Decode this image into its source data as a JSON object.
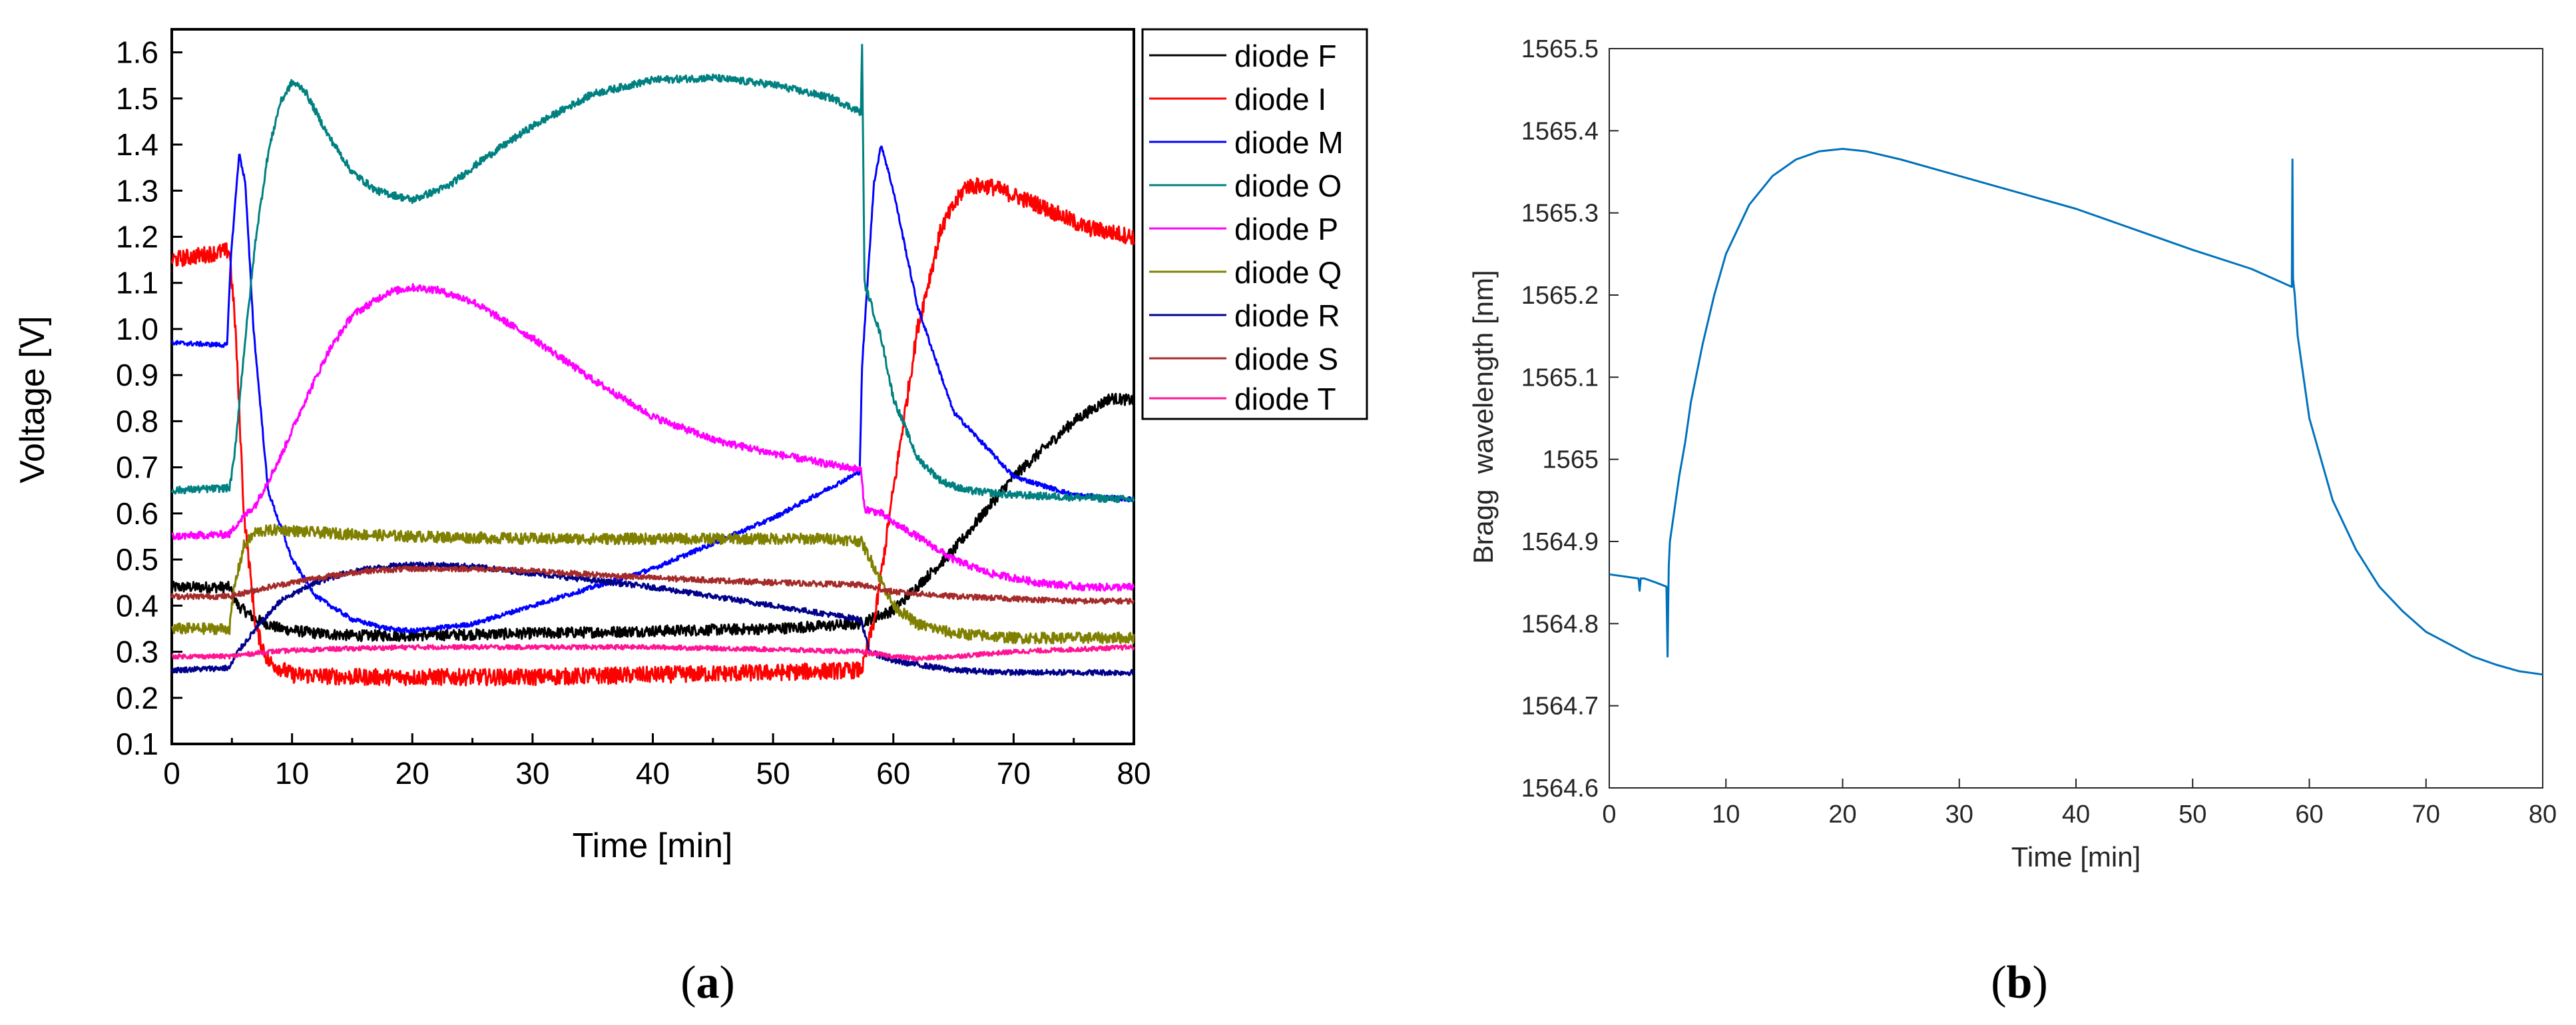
{
  "chart_data": [
    {
      "id": "a",
      "type": "line",
      "title": "",
      "panel_label": "a",
      "xlabel": "Time [min]",
      "ylabel": "Voltage [V]",
      "xlim": [
        0,
        80
      ],
      "ylim": [
        0.1,
        1.65
      ],
      "x_ticks": [
        0,
        10,
        20,
        30,
        40,
        50,
        60,
        70,
        80
      ],
      "x_tick_labels": [
        "0",
        "10",
        "20",
        "30",
        "40",
        "50",
        "60",
        "70",
        "80"
      ],
      "y_ticks": [
        0.1,
        0.2,
        0.3,
        0.4,
        0.5,
        0.6,
        0.7,
        0.8,
        0.9,
        1.0,
        1.1,
        1.2,
        1.3,
        1.4,
        1.5,
        1.6
      ],
      "y_tick_labels": [
        "0.1",
        "0.2",
        "0.3",
        "0.4",
        "0.5",
        "0.6",
        "0.7",
        "0.8",
        "0.9",
        "1.0",
        "1.1",
        "1.2",
        "1.3",
        "1.4",
        "1.5",
        "1.6"
      ],
      "grid": false,
      "legend_position": "outside-right-top",
      "series": [
        {
          "name": "diode F",
          "color": "#000000",
          "noise": 0.012,
          "x": [
            0,
            4.8,
            5.5,
            7,
            9,
            12,
            15,
            20,
            30,
            40,
            50,
            57,
            60,
            65,
            70,
            75,
            78,
            80
          ],
          "y": [
            0.44,
            0.44,
            0.4,
            0.37,
            0.35,
            0.34,
            0.335,
            0.335,
            0.34,
            0.345,
            0.35,
            0.36,
            0.39,
            0.52,
            0.68,
            0.8,
            0.85,
            0.845
          ]
        },
        {
          "name": "diode I",
          "color": "#ff0000",
          "noise": 0.018,
          "x": [
            0,
            4.8,
            5.3,
            6,
            7,
            8,
            10,
            15,
            20,
            30,
            40,
            50,
            57.2,
            57.5,
            58.5,
            60,
            62,
            64,
            66,
            68,
            72,
            76,
            80
          ],
          "y": [
            1.15,
            1.17,
            1.0,
            0.6,
            0.35,
            0.28,
            0.25,
            0.245,
            0.245,
            0.245,
            0.25,
            0.255,
            0.26,
            0.27,
            0.38,
            0.65,
            1.0,
            1.22,
            1.31,
            1.31,
            1.27,
            1.22,
            1.2
          ]
        },
        {
          "name": "diode M",
          "color": "#0000ff",
          "noise": 0.005,
          "x": [
            0,
            4.6,
            4.9,
            5.6,
            6.1,
            6.8,
            8,
            10,
            12,
            15,
            18,
            20,
            25,
            30,
            40,
            50,
            57.2,
            57.4,
            58.4,
            59,
            60,
            62,
            65,
            70,
            75,
            80
          ],
          "y": [
            0.97,
            0.965,
            1.15,
            1.38,
            1.32,
            1.0,
            0.65,
            0.5,
            0.42,
            0.37,
            0.35,
            0.345,
            0.36,
            0.4,
            0.48,
            0.59,
            0.69,
            0.92,
            1.32,
            1.4,
            1.3,
            1.05,
            0.82,
            0.68,
            0.64,
            0.63
          ]
        },
        {
          "name": "diode O",
          "color": "#008080",
          "noise": 0.008,
          "x": [
            0,
            4.8,
            5.2,
            6,
            7,
            8,
            9,
            10,
            11,
            13,
            15,
            17,
            20,
            23,
            26,
            30,
            35,
            40,
            45,
            50,
            55,
            57.3,
            57.4,
            57.6,
            58.2,
            59,
            60,
            62,
            64,
            66,
            70,
            75,
            80
          ],
          "y": [
            0.65,
            0.655,
            0.72,
            0.95,
            1.2,
            1.38,
            1.49,
            1.535,
            1.52,
            1.42,
            1.34,
            1.3,
            1.28,
            1.31,
            1.37,
            1.44,
            1.51,
            1.54,
            1.545,
            1.53,
            1.5,
            1.47,
            1.62,
            1.1,
            1.05,
            0.98,
            0.85,
            0.72,
            0.67,
            0.65,
            0.64,
            0.635,
            0.63
          ]
        },
        {
          "name": "diode P",
          "color": "#ff00ff",
          "noise": 0.008,
          "x": [
            0,
            4.8,
            5.5,
            7,
            9,
            11,
            13,
            15,
            18,
            20,
            22,
            25,
            30,
            35,
            40,
            45,
            50,
            55,
            57.3,
            57.6,
            59,
            60,
            62,
            65,
            68,
            72,
            76,
            80
          ],
          "y": [
            0.55,
            0.555,
            0.58,
            0.62,
            0.72,
            0.84,
            0.95,
            1.03,
            1.08,
            1.09,
            1.085,
            1.06,
            0.98,
            0.89,
            0.81,
            0.76,
            0.73,
            0.705,
            0.695,
            0.61,
            0.6,
            0.58,
            0.55,
            0.5,
            0.47,
            0.45,
            0.44,
            0.44
          ]
        },
        {
          "name": "diode Q",
          "color": "#808000",
          "noise": 0.012,
          "x": [
            0,
            4.8,
            5.2,
            6,
            7,
            9,
            11,
            15,
            20,
            30,
            40,
            50,
            55,
            57.3,
            58.5,
            60,
            62,
            65,
            70,
            75,
            80
          ],
          "y": [
            0.35,
            0.35,
            0.44,
            0.53,
            0.56,
            0.565,
            0.56,
            0.555,
            0.55,
            0.545,
            0.545,
            0.545,
            0.545,
            0.54,
            0.48,
            0.4,
            0.36,
            0.34,
            0.33,
            0.33,
            0.33
          ]
        },
        {
          "name": "diode R",
          "color": "#00008b",
          "noise": 0.006,
          "x": [
            0,
            4.8,
            5.5,
            7,
            9,
            12,
            15,
            18,
            20,
            25,
            30,
            40,
            50,
            57.3,
            58,
            60,
            65,
            70,
            75,
            80
          ],
          "y": [
            0.26,
            0.265,
            0.3,
            0.35,
            0.41,
            0.45,
            0.475,
            0.485,
            0.49,
            0.485,
            0.47,
            0.44,
            0.4,
            0.37,
            0.3,
            0.28,
            0.26,
            0.255,
            0.255,
            0.255
          ]
        },
        {
          "name": "diode S",
          "color": "#a52a2a",
          "noise": 0.006,
          "x": [
            0,
            4.8,
            8,
            12,
            16,
            20,
            25,
            30,
            40,
            50,
            57.3,
            60,
            65,
            70,
            75,
            80
          ],
          "y": [
            0.42,
            0.42,
            0.44,
            0.46,
            0.475,
            0.48,
            0.48,
            0.475,
            0.46,
            0.45,
            0.445,
            0.43,
            0.42,
            0.415,
            0.41,
            0.41
          ]
        },
        {
          "name": "diode T",
          "color": "#ff1493",
          "noise": 0.005,
          "x": [
            0,
            4.8,
            8,
            12,
            20,
            30,
            40,
            50,
            57.3,
            60,
            62,
            65,
            70,
            75,
            80
          ],
          "y": [
            0.29,
            0.29,
            0.3,
            0.305,
            0.31,
            0.31,
            0.31,
            0.305,
            0.3,
            0.29,
            0.285,
            0.29,
            0.3,
            0.305,
            0.31
          ]
        }
      ]
    },
    {
      "id": "b",
      "type": "line",
      "title": "",
      "panel_label": "b",
      "xlabel": "Time [min]",
      "ylabel": "Bragg  wavelength [nm]",
      "xlim": [
        0,
        80
      ],
      "ylim": [
        1564.6,
        1565.5
      ],
      "x_ticks": [
        0,
        10,
        20,
        30,
        40,
        50,
        60,
        70,
        80
      ],
      "x_tick_labels": [
        "0",
        "10",
        "20",
        "30",
        "40",
        "50",
        "60",
        "70",
        "80"
      ],
      "y_ticks": [
        1564.6,
        1564.7,
        1564.8,
        1564.9,
        1565.0,
        1565.1,
        1565.2,
        1565.3,
        1565.4,
        1565.5
      ],
      "y_tick_labels": [
        "1564.6",
        "1564.7",
        "1564.8",
        "1564.9",
        "1565",
        "1565.1",
        "1565.2",
        "1565.3",
        "1565.4",
        "1565.5"
      ],
      "grid": false,
      "series": [
        {
          "name": "Bragg wavelength",
          "color": "#0072bd",
          "x": [
            0,
            2.5,
            2.6,
            2.7,
            3,
            4,
            4.9,
            5.0,
            5.05,
            5.1,
            5.2,
            5.5,
            6,
            6.5,
            7,
            8,
            9,
            10,
            12,
            14,
            16,
            18,
            20,
            22,
            25,
            30,
            35,
            40,
            45,
            50,
            55,
            58.5,
            58.55,
            58.6,
            58.75,
            59,
            60,
            62,
            64,
            66,
            68,
            70,
            72,
            74,
            76,
            78,
            79,
            80
          ],
          "y": [
            1564.86,
            1564.855,
            1564.84,
            1564.855,
            1564.855,
            1564.85,
            1564.845,
            1564.76,
            1564.82,
            1564.87,
            1564.9,
            1564.93,
            1564.98,
            1565.02,
            1565.07,
            1565.14,
            1565.2,
            1565.25,
            1565.31,
            1565.345,
            1565.365,
            1565.375,
            1565.378,
            1565.375,
            1565.365,
            1565.345,
            1565.325,
            1565.305,
            1565.28,
            1565.255,
            1565.232,
            1565.21,
            1565.365,
            1565.22,
            1565.2,
            1565.15,
            1565.05,
            1564.95,
            1564.89,
            1564.845,
            1564.815,
            1564.79,
            1564.775,
            1564.76,
            1564.75,
            1564.742,
            1564.74,
            1564.738
          ]
        }
      ]
    }
  ]
}
